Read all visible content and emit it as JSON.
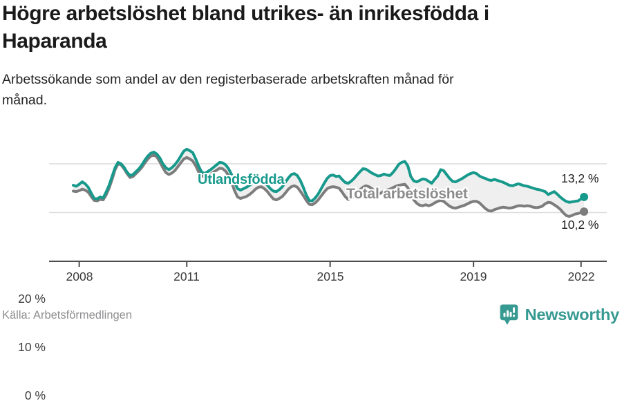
{
  "header": {
    "title": "Högre arbetslöshet bland utrikes- än inrikesfödda i Haparanda",
    "subtitle": "Arbetssökande som andel av den registerbaserade arbetskraften månad för månad."
  },
  "chart_data": {
    "type": "line",
    "title": "Högre arbetslöshet bland utrikes- än inrikesfödda i Haparanda",
    "unit": "%",
    "frequency": "monthly",
    "x_start": "2007-11",
    "x_end": "2022-02",
    "ylim": [
      0,
      24
    ],
    "grid": "horizontal",
    "legend_position": "inline-labels",
    "y_ticks": [
      "20 %",
      "10 %",
      "0 %"
    ],
    "y_tick_values": [
      20,
      10,
      0
    ],
    "x_tick_labels": [
      "2008",
      "2011",
      "2015",
      "2019",
      "2022"
    ],
    "x_tick_years": [
      2008,
      2011,
      2015,
      2019,
      2022
    ],
    "between_fill_color": "#efefef",
    "series": [
      {
        "name": "Utlandsfödda",
        "color": "#17998c",
        "end_label": "13,2 %",
        "end_value": 13.2,
        "values": [
          15.6,
          15.4,
          15.8,
          16.3,
          15.9,
          15.2,
          14.0,
          12.9,
          12.8,
          13.2,
          13.0,
          14.2,
          15.6,
          17.4,
          19.2,
          20.3,
          20.0,
          19.3,
          18.3,
          17.6,
          17.8,
          18.4,
          19.0,
          19.8,
          20.8,
          21.6,
          22.2,
          22.4,
          22.0,
          21.2,
          20.0,
          19.2,
          18.8,
          19.2,
          19.8,
          20.6,
          21.6,
          22.6,
          23.0,
          22.7,
          22.3,
          21.0,
          19.5,
          18.3,
          18.0,
          18.4,
          18.8,
          19.3,
          19.8,
          20.3,
          20.2,
          19.8,
          19.0,
          17.8,
          16.2,
          14.9,
          14.6,
          14.9,
          15.2,
          15.6,
          16.0,
          16.5,
          16.8,
          16.6,
          16.2,
          15.6,
          14.9,
          14.4,
          14.3,
          14.7,
          15.3,
          16.2,
          17.1,
          17.8,
          18.0,
          17.6,
          16.6,
          15.2,
          13.6,
          12.5,
          12.4,
          13.0,
          13.8,
          14.9,
          16.0,
          17.0,
          17.6,
          17.7,
          17.4,
          17.5,
          16.8,
          16.2,
          16.0,
          16.4,
          17.0,
          17.7,
          18.4,
          19.0,
          18.9,
          18.5,
          18.1,
          17.8,
          17.5,
          17.6,
          17.9,
          17.7,
          17.6,
          18.2,
          19.0,
          19.9,
          20.3,
          20.5,
          19.6,
          17.4,
          16.5,
          16.3,
          16.6,
          16.9,
          16.8,
          16.4,
          16.0,
          16.8,
          17.5,
          18.8,
          18.6,
          17.8,
          17.0,
          16.4,
          16.3,
          16.6,
          16.9,
          17.3,
          17.7,
          18.0,
          18.2,
          18.0,
          17.5,
          17.2,
          17.0,
          16.7,
          16.6,
          16.8,
          16.6,
          16.4,
          16.2,
          15.9,
          15.6,
          15.5,
          15.7,
          15.9,
          15.7,
          15.5,
          15.4,
          15.2,
          15.0,
          14.8,
          14.7,
          14.5,
          14.3,
          13.7,
          14.0,
          14.3,
          13.8,
          13.2,
          12.7,
          12.3,
          12.1,
          12.2,
          12.3,
          12.4,
          12.8,
          13.2
        ]
      },
      {
        "name": "Total arbetslöshet",
        "color": "#7d7d7d",
        "end_label": "10,2 %",
        "end_value": 10.2,
        "values": [
          14.4,
          14.3,
          14.5,
          14.8,
          14.6,
          14.2,
          13.3,
          12.5,
          12.4,
          12.7,
          12.6,
          13.6,
          15.0,
          16.8,
          18.8,
          20.0,
          19.8,
          19.0,
          18.0,
          17.2,
          17.4,
          18.0,
          18.6,
          19.3,
          20.2,
          21.0,
          21.6,
          21.8,
          21.4,
          20.4,
          19.2,
          18.2,
          17.8,
          18.1,
          18.6,
          19.4,
          20.2,
          21.0,
          21.3,
          21.0,
          20.6,
          19.6,
          18.3,
          17.5,
          17.3,
          17.6,
          17.9,
          18.3,
          18.7,
          19.1,
          19.0,
          18.5,
          17.6,
          16.2,
          14.5,
          13.2,
          12.9,
          13.1,
          13.3,
          13.7,
          14.2,
          14.8,
          15.2,
          15.3,
          14.9,
          14.3,
          13.5,
          12.8,
          12.6,
          12.9,
          13.3,
          14.0,
          14.8,
          15.3,
          15.5,
          15.2,
          14.4,
          13.5,
          12.5,
          11.7,
          11.6,
          12.0,
          12.6,
          13.4,
          14.2,
          14.9,
          15.2,
          15.3,
          15.2,
          15.0,
          14.2,
          13.3,
          12.7,
          13.0,
          13.5,
          14.1,
          14.7,
          15.2,
          15.5,
          15.3,
          14.9,
          14.3,
          13.8,
          14.0,
          14.4,
          14.6,
          14.8,
          15.1,
          15.4,
          15.6,
          15.7,
          15.8,
          15.1,
          13.8,
          12.6,
          11.9,
          11.5,
          11.4,
          11.6,
          11.4,
          11.6,
          12.0,
          12.3,
          12.5,
          12.3,
          11.8,
          11.3,
          11.0,
          10.9,
          11.1,
          11.3,
          11.5,
          11.8,
          12.1,
          12.3,
          12.3,
          12.0,
          11.4,
          10.8,
          10.4,
          10.3,
          10.6,
          10.8,
          11.0,
          11.1,
          11.0,
          10.9,
          11.0,
          11.2,
          11.4,
          11.4,
          11.3,
          11.4,
          11.3,
          11.1,
          11.0,
          11.1,
          11.3,
          11.8,
          12.1,
          12.0,
          11.6,
          11.2,
          10.7,
          10.0,
          9.4,
          9.2,
          9.4,
          9.7,
          9.8,
          10.0,
          10.2
        ]
      }
    ]
  },
  "footer": {
    "source": "Källa: Arbetsförmedlingen",
    "logo_text": "Newsworthy",
    "logo_color": "#379a92"
  }
}
